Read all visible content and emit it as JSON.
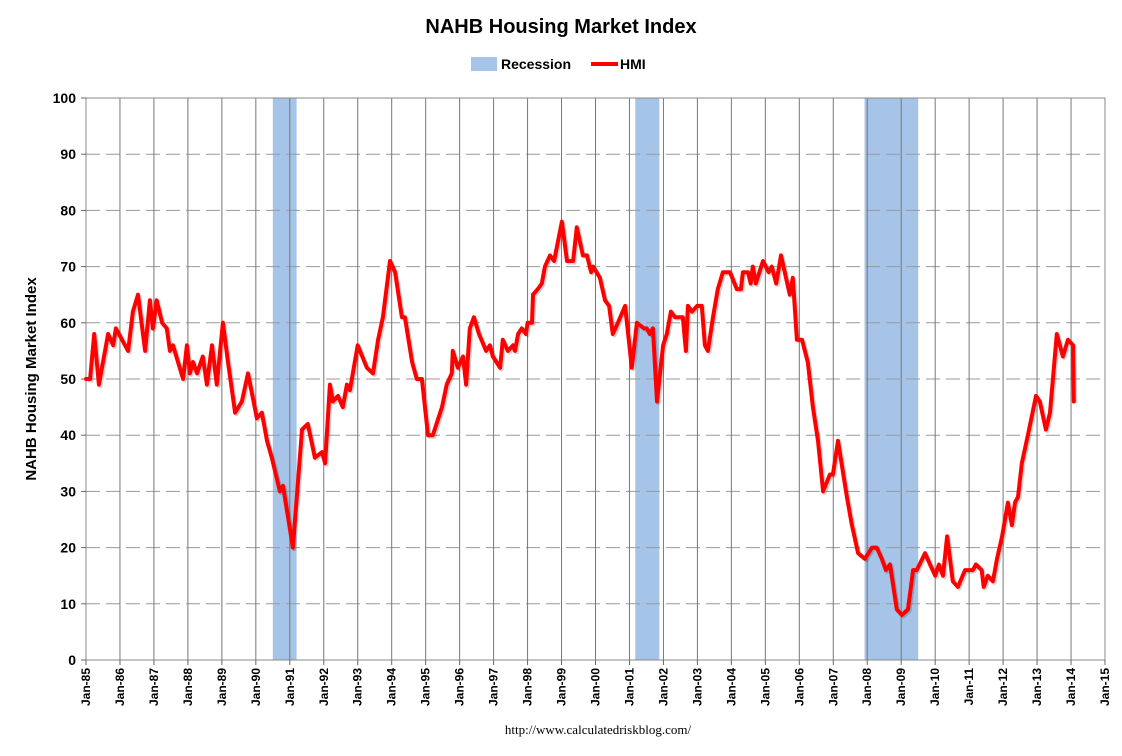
{
  "chart_data": {
    "type": "line",
    "title": "NAHB Housing Market Index",
    "xlabel": "",
    "ylabel": "NAHB Housing Market Index",
    "ylim": [
      0,
      100
    ],
    "yticks": [
      "0",
      "10",
      "20",
      "30",
      "40",
      "50",
      "60",
      "70",
      "80",
      "90",
      "100"
    ],
    "xlim": [
      1985,
      2015
    ],
    "xticks": [
      "Jan-85",
      "Jan-86",
      "Jan-87",
      "Jan-88",
      "Jan-89",
      "Jan-90",
      "Jan-91",
      "Jan-92",
      "Jan-93",
      "Jan-94",
      "Jan-95",
      "Jan-96",
      "Jan-97",
      "Jan-98",
      "Jan-99",
      "Jan-00",
      "Jan-01",
      "Jan-02",
      "Jan-03",
      "Jan-04",
      "Jan-05",
      "Jan-06",
      "Jan-07",
      "Jan-08",
      "Jan-09",
      "Jan-10",
      "Jan-11",
      "Jan-12",
      "Jan-13",
      "Jan-14",
      "Jan-15"
    ],
    "grid": true,
    "legend_position": "top-center",
    "legend": [
      "Recession",
      "HMI"
    ],
    "colors": {
      "hmi": "#ff0000",
      "recession": "#a6c3e8"
    },
    "recessions": [
      [
        1990.5,
        1991.2
      ],
      [
        2001.17,
        2001.88
      ],
      [
        2007.92,
        2009.5
      ]
    ],
    "series": [
      {
        "name": "HMI",
        "points": [
          [
            1985.0,
            50
          ],
          [
            1985.12,
            50
          ],
          [
            1985.24,
            58
          ],
          [
            1985.38,
            49
          ],
          [
            1985.65,
            58
          ],
          [
            1985.8,
            56
          ],
          [
            1985.88,
            59
          ],
          [
            1986.06,
            57
          ],
          [
            1986.24,
            55
          ],
          [
            1986.38,
            62
          ],
          [
            1986.53,
            65
          ],
          [
            1986.74,
            55
          ],
          [
            1986.88,
            64
          ],
          [
            1986.97,
            59
          ],
          [
            1987.08,
            64
          ],
          [
            1987.24,
            60
          ],
          [
            1987.38,
            59
          ],
          [
            1987.47,
            55
          ],
          [
            1987.56,
            56
          ],
          [
            1987.86,
            50
          ],
          [
            1987.97,
            56
          ],
          [
            1988.06,
            51
          ],
          [
            1988.15,
            53
          ],
          [
            1988.27,
            51
          ],
          [
            1988.44,
            54
          ],
          [
            1988.56,
            49
          ],
          [
            1988.71,
            56
          ],
          [
            1988.85,
            49
          ],
          [
            1989.03,
            60
          ],
          [
            1989.18,
            53
          ],
          [
            1989.39,
            44
          ],
          [
            1989.59,
            46
          ],
          [
            1989.77,
            51
          ],
          [
            1990.03,
            43
          ],
          [
            1990.18,
            44
          ],
          [
            1990.33,
            39
          ],
          [
            1990.47,
            36
          ],
          [
            1990.71,
            30
          ],
          [
            1990.8,
            31
          ],
          [
            1991.09,
            20
          ],
          [
            1991.36,
            41
          ],
          [
            1991.53,
            42
          ],
          [
            1991.74,
            36
          ],
          [
            1991.95,
            37
          ],
          [
            1992.04,
            35
          ],
          [
            1992.18,
            49
          ],
          [
            1992.27,
            46
          ],
          [
            1992.42,
            47
          ],
          [
            1992.56,
            45
          ],
          [
            1992.68,
            49
          ],
          [
            1992.77,
            48
          ],
          [
            1993.0,
            56
          ],
          [
            1993.27,
            52
          ],
          [
            1993.45,
            51
          ],
          [
            1993.6,
            57
          ],
          [
            1993.74,
            61
          ],
          [
            1993.95,
            71
          ],
          [
            1994.1,
            69
          ],
          [
            1994.3,
            61
          ],
          [
            1994.39,
            61
          ],
          [
            1994.6,
            53
          ],
          [
            1994.74,
            50
          ],
          [
            1994.89,
            50
          ],
          [
            1995.07,
            40
          ],
          [
            1995.21,
            40
          ],
          [
            1995.48,
            45
          ],
          [
            1995.62,
            49
          ],
          [
            1995.77,
            51
          ],
          [
            1995.8,
            55
          ],
          [
            1995.95,
            52
          ],
          [
            1996.1,
            54
          ],
          [
            1996.19,
            49
          ],
          [
            1996.3,
            59
          ],
          [
            1996.42,
            61
          ],
          [
            1996.57,
            58
          ],
          [
            1996.78,
            55
          ],
          [
            1996.89,
            56
          ],
          [
            1996.98,
            54
          ],
          [
            1997.19,
            52
          ],
          [
            1997.27,
            57
          ],
          [
            1997.42,
            55
          ],
          [
            1997.57,
            56
          ],
          [
            1997.63,
            55
          ],
          [
            1997.72,
            58
          ],
          [
            1997.83,
            59
          ],
          [
            1997.95,
            58
          ],
          [
            1998.0,
            60
          ],
          [
            1998.13,
            60
          ],
          [
            1998.16,
            65
          ],
          [
            1998.3,
            66
          ],
          [
            1998.42,
            67
          ],
          [
            1998.51,
            70
          ],
          [
            1998.66,
            72
          ],
          [
            1998.78,
            71
          ],
          [
            1999.01,
            78
          ],
          [
            1999.16,
            71
          ],
          [
            1999.34,
            71
          ],
          [
            1999.45,
            77
          ],
          [
            1999.63,
            72
          ],
          [
            1999.75,
            72
          ],
          [
            1999.87,
            69
          ],
          [
            1999.93,
            70
          ],
          [
            2000.13,
            68
          ],
          [
            2000.28,
            64
          ],
          [
            2000.4,
            63
          ],
          [
            2000.51,
            58
          ],
          [
            2000.66,
            60
          ],
          [
            2000.87,
            63
          ],
          [
            2001.07,
            52
          ],
          [
            2001.22,
            60
          ],
          [
            2001.43,
            59
          ],
          [
            2001.51,
            59
          ],
          [
            2001.6,
            58
          ],
          [
            2001.69,
            59
          ],
          [
            2001.81,
            46
          ],
          [
            2001.99,
            56
          ],
          [
            2002.1,
            58
          ],
          [
            2002.22,
            62
          ],
          [
            2002.34,
            61
          ],
          [
            2002.57,
            61
          ],
          [
            2002.66,
            55
          ],
          [
            2002.72,
            63
          ],
          [
            2002.84,
            62
          ],
          [
            2002.99,
            63
          ],
          [
            2003.13,
            63
          ],
          [
            2003.22,
            56
          ],
          [
            2003.31,
            55
          ],
          [
            2003.46,
            61
          ],
          [
            2003.6,
            66
          ],
          [
            2003.75,
            69
          ],
          [
            2003.87,
            69
          ],
          [
            2003.96,
            69
          ],
          [
            2004.16,
            66
          ],
          [
            2004.28,
            66
          ],
          [
            2004.34,
            69
          ],
          [
            2004.49,
            69
          ],
          [
            2004.57,
            67
          ],
          [
            2004.63,
            70
          ],
          [
            2004.72,
            67
          ],
          [
            2004.93,
            71
          ],
          [
            2005.1,
            69
          ],
          [
            2005.19,
            70
          ],
          [
            2005.32,
            67
          ],
          [
            2005.46,
            72
          ],
          [
            2005.72,
            65
          ],
          [
            2005.81,
            68
          ],
          [
            2005.93,
            57
          ],
          [
            2006.08,
            57
          ],
          [
            2006.25,
            53
          ],
          [
            2006.4,
            45
          ],
          [
            2006.55,
            39
          ],
          [
            2006.7,
            30
          ],
          [
            2006.9,
            33
          ],
          [
            2006.99,
            33
          ],
          [
            2007.14,
            39
          ],
          [
            2007.4,
            29
          ],
          [
            2007.55,
            24
          ],
          [
            2007.73,
            19
          ],
          [
            2007.93,
            18
          ],
          [
            2008.14,
            20
          ],
          [
            2008.28,
            20
          ],
          [
            2008.43,
            18
          ],
          [
            2008.55,
            16
          ],
          [
            2008.67,
            17
          ],
          [
            2008.87,
            9
          ],
          [
            2009.02,
            8
          ],
          [
            2009.2,
            9
          ],
          [
            2009.35,
            16
          ],
          [
            2009.46,
            16
          ],
          [
            2009.7,
            19
          ],
          [
            2009.85,
            17
          ],
          [
            2010.0,
            15
          ],
          [
            2010.11,
            17
          ],
          [
            2010.23,
            15
          ],
          [
            2010.35,
            22
          ],
          [
            2010.52,
            14
          ],
          [
            2010.67,
            13
          ],
          [
            2010.88,
            16
          ],
          [
            2011.11,
            16
          ],
          [
            2011.2,
            17
          ],
          [
            2011.37,
            16
          ],
          [
            2011.43,
            13
          ],
          [
            2011.55,
            15
          ],
          [
            2011.7,
            14
          ],
          [
            2011.82,
            18
          ],
          [
            2011.97,
            22
          ],
          [
            2012.14,
            28
          ],
          [
            2012.26,
            24
          ],
          [
            2012.35,
            28
          ],
          [
            2012.44,
            29
          ],
          [
            2012.55,
            35
          ],
          [
            2012.73,
            40
          ],
          [
            2012.97,
            47
          ],
          [
            2013.08,
            46
          ],
          [
            2013.26,
            41
          ],
          [
            2013.38,
            44
          ],
          [
            2013.58,
            58
          ],
          [
            2013.76,
            54
          ],
          [
            2013.91,
            57
          ],
          [
            2014.06,
            56
          ],
          [
            2014.08,
            46
          ]
        ]
      }
    ]
  },
  "footer": "http://www.calculatedriskblog.com/"
}
